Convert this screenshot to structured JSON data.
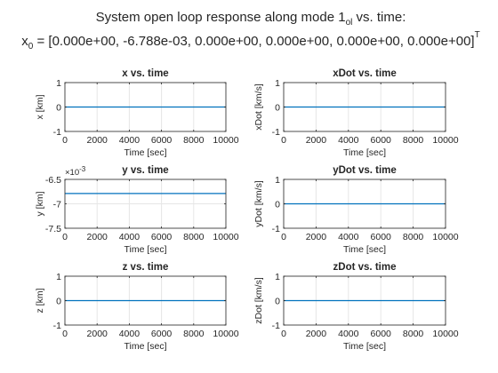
{
  "figure": {
    "title_line1": "System open loop response along mode 1",
    "title_line1_sub": "ol",
    "title_line1_end": " vs. time:",
    "title_line2": "x",
    "title_line2_sub": "0",
    "title_line2_end": " = [0.000e+00, -6.788e-03, 0.000e+00, 0.000e+00, 0.000e+00, 0.000e+00]",
    "title_line2_sup": "T"
  },
  "colors": {
    "line": "#0072bd",
    "axis": "#262626",
    "grid": "#e6e6e6"
  },
  "chart_data": [
    {
      "type": "line",
      "title": "x vs. time",
      "xlabel": "Time [sec]",
      "ylabel": "x [km]",
      "xlim": [
        0,
        10000
      ],
      "ylim": [
        -1,
        1
      ],
      "xticks": [
        0,
        2000,
        4000,
        6000,
        8000,
        10000
      ],
      "xtick_labels": [
        "0",
        "2000",
        "4000",
        "6000",
        "8000",
        "10000"
      ],
      "yticks": [
        -1,
        0,
        1
      ],
      "ytick_labels": [
        "-1",
        "0",
        "1"
      ],
      "y_exponent": "",
      "series": [
        {
          "x": [
            0,
            10000
          ],
          "y": [
            0,
            0
          ]
        }
      ],
      "grid": true
    },
    {
      "type": "line",
      "title": "xDot vs. time",
      "xlabel": "Time [sec]",
      "ylabel": "xDot [km/s]",
      "xlim": [
        0,
        10000
      ],
      "ylim": [
        -1,
        1
      ],
      "xticks": [
        0,
        2000,
        4000,
        6000,
        8000,
        10000
      ],
      "xtick_labels": [
        "0",
        "2000",
        "4000",
        "6000",
        "8000",
        "10000"
      ],
      "yticks": [
        -1,
        0,
        1
      ],
      "ytick_labels": [
        "-1",
        "0",
        "1"
      ],
      "y_exponent": "",
      "series": [
        {
          "x": [
            0,
            10000
          ],
          "y": [
            0,
            0
          ]
        }
      ],
      "grid": true
    },
    {
      "type": "line",
      "title": "y vs. time",
      "xlabel": "Time [sec]",
      "ylabel": "y [km]",
      "xlim": [
        0,
        10000
      ],
      "ylim": [
        -0.0075,
        -0.0065
      ],
      "xticks": [
        0,
        2000,
        4000,
        6000,
        8000,
        10000
      ],
      "xtick_labels": [
        "0",
        "2000",
        "4000",
        "6000",
        "8000",
        "10000"
      ],
      "yticks": [
        -0.0075,
        -0.007,
        -0.0065
      ],
      "ytick_labels": [
        "-7.5",
        "-7",
        "-6.5"
      ],
      "y_exponent": "-3",
      "series": [
        {
          "x": [
            0,
            10000
          ],
          "y": [
            -0.006788,
            -0.006788
          ]
        }
      ],
      "grid": true
    },
    {
      "type": "line",
      "title": "yDot vs. time",
      "xlabel": "Time [sec]",
      "ylabel": "yDot [km/s]",
      "xlim": [
        0,
        10000
      ],
      "ylim": [
        -1,
        1
      ],
      "xticks": [
        0,
        2000,
        4000,
        6000,
        8000,
        10000
      ],
      "xtick_labels": [
        "0",
        "2000",
        "4000",
        "6000",
        "8000",
        "10000"
      ],
      "yticks": [
        -1,
        0,
        1
      ],
      "ytick_labels": [
        "-1",
        "0",
        "1"
      ],
      "y_exponent": "",
      "series": [
        {
          "x": [
            0,
            10000
          ],
          "y": [
            0,
            0
          ]
        }
      ],
      "grid": true
    },
    {
      "type": "line",
      "title": "z vs. time",
      "xlabel": "Time [sec]",
      "ylabel": "z [km]",
      "xlim": [
        0,
        10000
      ],
      "ylim": [
        -1,
        1
      ],
      "xticks": [
        0,
        2000,
        4000,
        6000,
        8000,
        10000
      ],
      "xtick_labels": [
        "0",
        "2000",
        "4000",
        "6000",
        "8000",
        "10000"
      ],
      "yticks": [
        -1,
        0,
        1
      ],
      "ytick_labels": [
        "-1",
        "0",
        "1"
      ],
      "y_exponent": "",
      "series": [
        {
          "x": [
            0,
            10000
          ],
          "y": [
            0,
            0
          ]
        }
      ],
      "grid": true
    },
    {
      "type": "line",
      "title": "zDot vs. time",
      "xlabel": "Time [sec]",
      "ylabel": "zDot [km/s]",
      "xlim": [
        0,
        10000
      ],
      "ylim": [
        -1,
        1
      ],
      "xticks": [
        0,
        2000,
        4000,
        6000,
        8000,
        10000
      ],
      "xtick_labels": [
        "0",
        "2000",
        "4000",
        "6000",
        "8000",
        "10000"
      ],
      "yticks": [
        -1,
        0,
        1
      ],
      "ytick_labels": [
        "-1",
        "0",
        "1"
      ],
      "y_exponent": "",
      "series": [
        {
          "x": [
            0,
            10000
          ],
          "y": [
            0,
            0
          ]
        }
      ],
      "grid": true
    }
  ]
}
